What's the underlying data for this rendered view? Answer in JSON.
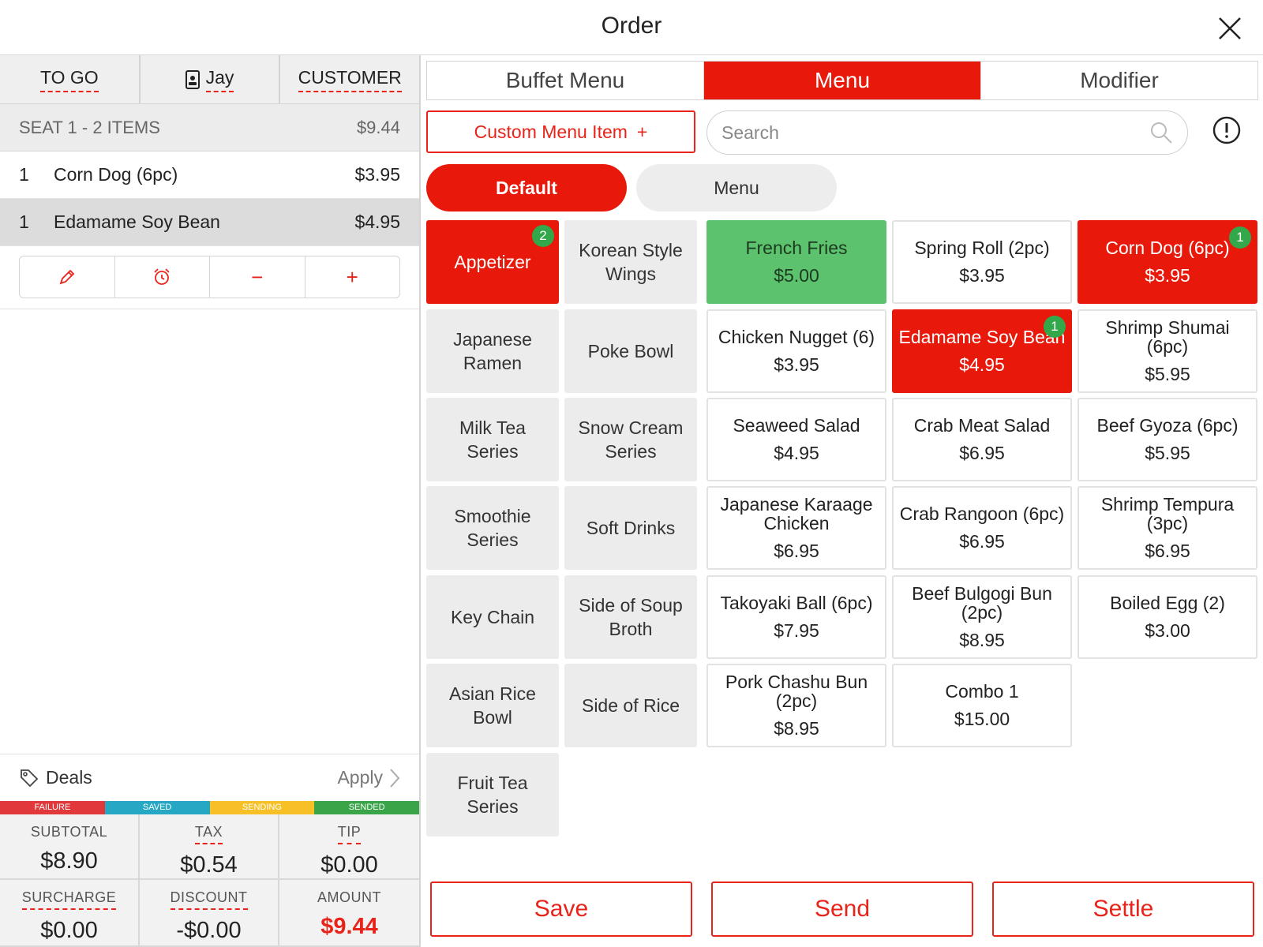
{
  "header": {
    "title": "Order"
  },
  "left": {
    "tabs": {
      "to_go": "TO GO",
      "server": "Jay",
      "customer": "CUSTOMER"
    },
    "seat": {
      "label": "SEAT 1 - 2 ITEMS",
      "total": "$9.44"
    },
    "items": [
      {
        "qty": "1",
        "name": "Corn Dog (6pc)",
        "price": "$3.95"
      },
      {
        "qty": "1",
        "name": "Edamame Soy Bean",
        "price": "$4.95"
      }
    ],
    "actions": {
      "edit": "✎",
      "timer": "⏰",
      "minus": "−",
      "plus": "+"
    },
    "deals": {
      "label": "Deals",
      "apply": "Apply"
    },
    "status": {
      "failure": "FAILURE",
      "saved": "SAVED",
      "sending": "SENDING",
      "sended": "SENDED"
    },
    "status_colors": {
      "failure": "#e0383b",
      "saved": "#26a7c4",
      "sending": "#f6c026",
      "sended": "#3aa548"
    },
    "totals": {
      "subtotal_label": "SUBTOTAL",
      "subtotal": "$8.90",
      "tax_label": "TAX",
      "tax": "$0.54",
      "tip_label": "TIP",
      "tip": "$0.00",
      "surcharge_label": "SURCHARGE",
      "surcharge": "$0.00",
      "discount_label": "DISCOUNT",
      "discount": "-$0.00",
      "amount_label": "AMOUNT",
      "amount": "$9.44"
    }
  },
  "right": {
    "tabs": {
      "buffet": "Buffet Menu",
      "menu": "Menu",
      "modifier": "Modifier"
    },
    "custom_item": {
      "label": "Custom Menu Item",
      "plus": "+"
    },
    "search": {
      "placeholder": "Search"
    },
    "pills": {
      "default": "Default",
      "menu": "Menu"
    },
    "categories": [
      {
        "label": "Appetizer",
        "badge": "2"
      },
      {
        "label": "Korean Style Wings"
      },
      {
        "label": "Japanese Ramen"
      },
      {
        "label": "Poke Bowl"
      },
      {
        "label": "Milk Tea Series"
      },
      {
        "label": "Snow Cream Series"
      },
      {
        "label": "Smoothie Series"
      },
      {
        "label": "Soft Drinks"
      },
      {
        "label": "Key Chain"
      },
      {
        "label": "Side of Soup Broth"
      },
      {
        "label": "Asian Rice Bowl"
      },
      {
        "label": "Side of Rice"
      },
      {
        "label": "Fruit Tea Series"
      }
    ],
    "menu_items": [
      {
        "name": "French Fries",
        "price": "$5.00"
      },
      {
        "name": "Spring Roll (2pc)",
        "price": "$3.95"
      },
      {
        "name": "Corn Dog (6pc)",
        "price": "$3.95",
        "badge": "1"
      },
      {
        "name": "Chicken Nugget (6)",
        "price": "$3.95"
      },
      {
        "name": "Edamame Soy Bean",
        "price": "$4.95",
        "badge": "1"
      },
      {
        "name": "Shrimp Shumai (6pc)",
        "price": "$5.95"
      },
      {
        "name": "Seaweed Salad",
        "price": "$4.95"
      },
      {
        "name": "Crab Meat Salad",
        "price": "$6.95"
      },
      {
        "name": "Beef Gyoza (6pc)",
        "price": "$5.95"
      },
      {
        "name": "Japanese Karaage Chicken",
        "price": "$6.95"
      },
      {
        "name": "Crab Rangoon (6pc)",
        "price": "$6.95"
      },
      {
        "name": "Shrimp Tempura (3pc)",
        "price": "$6.95"
      },
      {
        "name": "Takoyaki Ball (6pc)",
        "price": "$7.95"
      },
      {
        "name": "Beef Bulgogi Bun (2pc)",
        "price": "$8.95"
      },
      {
        "name": "Boiled Egg (2)",
        "price": "$3.00"
      },
      {
        "name": "Pork Chashu Bun (2pc)",
        "price": "$8.95"
      },
      {
        "name": "Combo 1",
        "price": "$15.00"
      }
    ],
    "footer": {
      "save": "Save",
      "send": "Send",
      "settle": "Settle"
    }
  },
  "colors": {
    "accent": "#e8190b",
    "success": "#5cc26d",
    "badge": "#33a84a"
  }
}
